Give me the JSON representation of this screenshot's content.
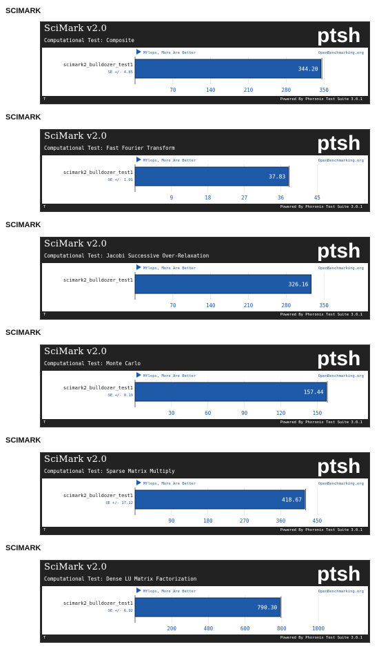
{
  "panels": [
    {
      "heading": "SCIMARK",
      "title": "SciMark v2.0",
      "test": "Computational Test: Composite",
      "logo_text": "ptsh",
      "unit_label": "Mflops, More Are Better",
      "site": "OpenBenchmarking.org",
      "footer_toggle": "T",
      "powered": "Powered By Phoronix Test Suite 3.0.1",
      "chart_data": {
        "type": "bar",
        "categories": [
          "scimark2_bulldozer_test1"
        ],
        "values": [
          344.2
        ],
        "value_labels": [
          "344.20"
        ],
        "se_label": "SE +/- 4.85",
        "ticks": [
          70,
          140,
          210,
          280,
          350
        ],
        "xlim": [
          0,
          360
        ],
        "xlabel": "",
        "ylabel": "",
        "title": ""
      }
    },
    {
      "heading": "SCIMARK",
      "title": "SciMark v2.0",
      "test": "Computational Test: Fast Fourier Transform",
      "logo_text": "ptsh",
      "unit_label": "Mflops, More Are Better",
      "site": "OpenBenchmarking.org",
      "footer_toggle": "T",
      "powered": "Powered By Phoronix Test Suite 3.0.1",
      "chart_data": {
        "type": "bar",
        "categories": [
          "scimark2_bulldozer_test1"
        ],
        "values": [
          37.83
        ],
        "value_labels": [
          "37.83"
        ],
        "se_label": "SE +/- 1.01",
        "ticks": [
          9,
          18,
          27,
          36,
          45
        ],
        "xlim": [
          0,
          48
        ],
        "xlabel": "",
        "ylabel": "",
        "title": ""
      }
    },
    {
      "heading": "SCIMARK",
      "title": "SciMark v2.0",
      "test": "Computational Test: Jacobi Successive Over-Relaxation",
      "logo_text": "ptsh",
      "unit_label": "Mflops, More Are Better",
      "site": "OpenBenchmarking.org",
      "footer_toggle": "T",
      "powered": "Powered By Phoronix Test Suite 3.0.1",
      "chart_data": {
        "type": "bar",
        "categories": [
          "scimark2_bulldozer_test1"
        ],
        "values": [
          326.16
        ],
        "value_labels": [
          "326.16"
        ],
        "se_label": "",
        "ticks": [
          70,
          140,
          210,
          280,
          350
        ],
        "xlim": [
          0,
          360
        ],
        "xlabel": "",
        "ylabel": "",
        "title": ""
      }
    },
    {
      "heading": "SCIMARK",
      "title": "SciMark v2.0",
      "test": "Computational Test: Monte Carlo",
      "logo_text": "ptsh",
      "unit_label": "Mflops, More Are Better",
      "site": "OpenBenchmarking.org",
      "footer_toggle": "T",
      "powered": "Powered By Phoronix Test Suite 3.0.1",
      "chart_data": {
        "type": "bar",
        "categories": [
          "scimark2_bulldozer_test1"
        ],
        "values": [
          157.44
        ],
        "value_labels": [
          "157.44"
        ],
        "se_label": "SE +/- 0.19",
        "ticks": [
          30,
          60,
          90,
          120,
          150
        ],
        "xlim": [
          0,
          160
        ],
        "xlabel": "",
        "ylabel": "",
        "title": ""
      }
    },
    {
      "heading": "SCIMARK",
      "title": "SciMark v2.0",
      "test": "Computational Test: Sparse Matrix Multiply",
      "logo_text": "ptsh",
      "unit_label": "Mflops, More Are Better",
      "site": "OpenBenchmarking.org",
      "footer_toggle": "T",
      "powered": "Powered By Phoronix Test Suite 3.0.1",
      "chart_data": {
        "type": "bar",
        "categories": [
          "scimark2_bulldozer_test1"
        ],
        "values": [
          418.67
        ],
        "value_labels": [
          "418.67"
        ],
        "se_label": "SE +/- 17.12",
        "ticks": [
          90,
          180,
          270,
          360,
          450
        ],
        "xlim": [
          0,
          480
        ],
        "xlabel": "",
        "ylabel": "",
        "title": ""
      }
    },
    {
      "heading": "SCIMARK",
      "title": "SciMark v2.0",
      "test": "Computational Test: Dense LU Matrix Factorization",
      "logo_text": "ptsh",
      "unit_label": "Mflops, More Are Better",
      "site": "OpenBenchmarking.org",
      "footer_toggle": "T",
      "powered": "Powered By Phoronix Test Suite 3.0.1",
      "chart_data": {
        "type": "bar",
        "categories": [
          "scimark2_bulldozer_test1"
        ],
        "values": [
          790.3
        ],
        "value_labels": [
          "790.30"
        ],
        "se_label": "SE +/- 6.92",
        "ticks": [
          200,
          400,
          600,
          800,
          1000
        ],
        "xlim": [
          0,
          1060
        ],
        "xlabel": "",
        "ylabel": "",
        "title": ""
      }
    }
  ],
  "colors": {
    "bar_fill": "#1e5aa8",
    "bar_border": "#0b2a55",
    "axis_text": "#1e5aa8",
    "panel_bg": "#222222",
    "label_text": "#1a1a1a"
  }
}
